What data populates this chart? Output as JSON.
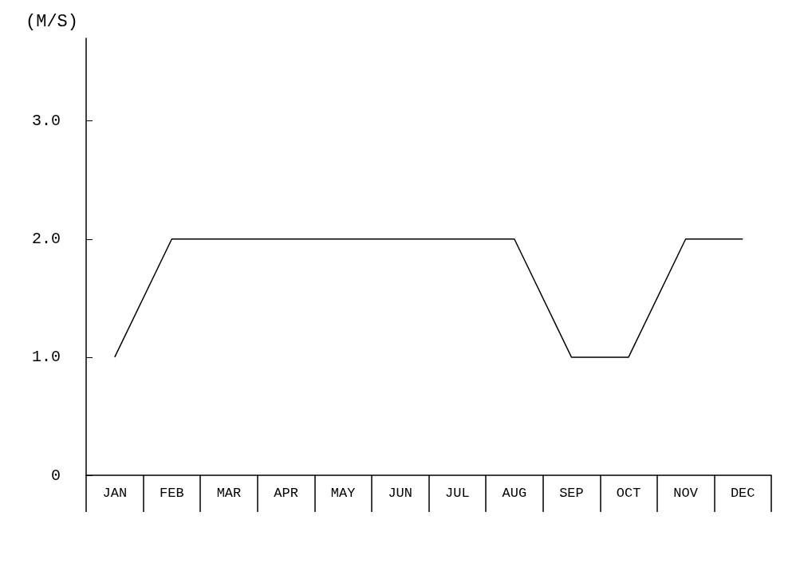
{
  "chart_data": {
    "type": "line",
    "ylabel": "(M/S)",
    "categories": [
      "JAN",
      "FEB",
      "MAR",
      "APR",
      "MAY",
      "JUN",
      "JUL",
      "AUG",
      "SEP",
      "OCT",
      "NOV",
      "DEC"
    ],
    "values": [
      1.0,
      2.0,
      2.0,
      2.0,
      2.0,
      2.0,
      2.0,
      2.0,
      1.0,
      1.0,
      2.0,
      2.0
    ],
    "color": "#000000",
    "ylim": [
      0,
      3.7
    ],
    "yticks": [
      0,
      {
        "value": 1,
        "label": "1.0"
      },
      {
        "value": 2,
        "label": "2.0"
      },
      {
        "value": 3,
        "label": "3.0"
      }
    ],
    "grid": false,
    "marker": "none",
    "line_style": "solid"
  }
}
